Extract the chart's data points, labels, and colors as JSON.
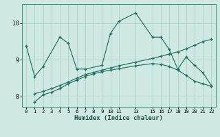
{
  "background_color": "#cfe8e3",
  "grid_color": "#a8cec8",
  "line_color": "#1e7060",
  "xlabel": "Humidex (Indice chaleur)",
  "xlim": [
    -0.5,
    22.5
  ],
  "ylim": [
    7.72,
    10.52
  ],
  "yticks": [
    8,
    9,
    10
  ],
  "xtick_pos": [
    0,
    1,
    2,
    3,
    4,
    5,
    6,
    7,
    8,
    9,
    10,
    11,
    13,
    15,
    16,
    17,
    18,
    19,
    20,
    21,
    22
  ],
  "xtick_lab": [
    "0",
    "1",
    "2",
    "3",
    "4",
    "5",
    "6",
    "7",
    "8",
    "9",
    "10",
    "11",
    "13",
    "15",
    "16",
    "17",
    "18",
    "19",
    "20",
    "21",
    "22"
  ],
  "s1_x": [
    0,
    1,
    2,
    4,
    5,
    6,
    7,
    9,
    10,
    11,
    13,
    15,
    16,
    17,
    18,
    19,
    20,
    21,
    22
  ],
  "s1_y": [
    9.38,
    8.55,
    8.82,
    9.62,
    9.45,
    8.75,
    8.75,
    8.85,
    9.72,
    10.05,
    10.28,
    9.62,
    9.62,
    9.28,
    8.75,
    9.08,
    8.85,
    8.65,
    8.3
  ],
  "s2_x": [
    1,
    2,
    3,
    4,
    5,
    6,
    7,
    8,
    9,
    10,
    11,
    13,
    15,
    16,
    17,
    18,
    19,
    20,
    21,
    22
  ],
  "s2_y": [
    7.85,
    8.05,
    8.12,
    8.22,
    8.35,
    8.45,
    8.55,
    8.62,
    8.68,
    8.72,
    8.76,
    8.84,
    8.9,
    8.88,
    8.82,
    8.72,
    8.58,
    8.42,
    8.35,
    8.28
  ],
  "s3_x": [
    1,
    2,
    3,
    4,
    5,
    6,
    7,
    8,
    9,
    10,
    11,
    13,
    15,
    16,
    17,
    18,
    19,
    20,
    21,
    22
  ],
  "s3_y": [
    8.08,
    8.14,
    8.22,
    8.3,
    8.4,
    8.5,
    8.6,
    8.66,
    8.72,
    8.78,
    8.84,
    8.94,
    9.04,
    9.1,
    9.16,
    9.22,
    9.3,
    9.4,
    9.5,
    9.56
  ]
}
